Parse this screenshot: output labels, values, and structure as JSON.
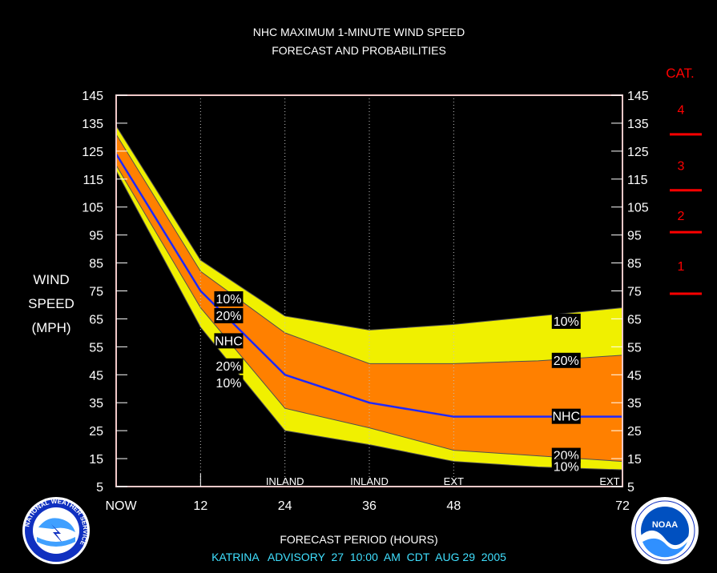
{
  "chart_data": {
    "type": "area",
    "title": "NHC MAXIMUM 1-MINUTE WIND SPEED",
    "subtitle": "FORECAST AND PROBABILITIES",
    "ylabel_lines": [
      "WIND",
      "SPEED",
      "(MPH)"
    ],
    "xlabel": "FORECAST PERIOD (HOURS)",
    "footer": "KATRINA   ADVISORY  27  10:00  AM  CDT  AUG 29  2005",
    "x": [
      0,
      12,
      24,
      36,
      48,
      60,
      72
    ],
    "xlim": [
      0,
      72
    ],
    "ylim": [
      5,
      145
    ],
    "yticks": [
      5,
      15,
      25,
      35,
      45,
      55,
      65,
      75,
      85,
      95,
      105,
      115,
      125,
      135,
      145
    ],
    "xticks": [
      {
        "value": 0,
        "label": "NOW"
      },
      {
        "value": 12,
        "label": "12"
      },
      {
        "value": 24,
        "label": "24"
      },
      {
        "value": 36,
        "label": "36"
      },
      {
        "value": 48,
        "label": "48"
      },
      {
        "value": 72,
        "label": "72"
      }
    ],
    "period_labels": [
      {
        "x": 24,
        "label": "INLAND"
      },
      {
        "x": 36,
        "label": "INLAND"
      },
      {
        "x": 48,
        "label": "EXT"
      },
      {
        "x": 72,
        "label": "EXT"
      }
    ],
    "series": [
      {
        "name": "10%",
        "values": [
          134,
          86,
          66,
          61,
          63,
          66,
          69
        ],
        "color": "#f0f000"
      },
      {
        "name": "20%",
        "values": [
          131,
          82,
          60,
          49,
          49,
          50,
          52
        ],
        "color": "#ff8000"
      },
      {
        "name": "NHC",
        "values": [
          124,
          75,
          45,
          35,
          30,
          30,
          30
        ],
        "color": "#1e28ff"
      },
      {
        "name": "20%",
        "values": [
          120,
          69,
          33,
          26,
          18,
          16,
          14
        ],
        "color": "#ff8000"
      },
      {
        "name": "10%",
        "values": [
          118,
          62,
          25,
          20,
          14,
          12,
          11
        ],
        "color": "#f0f000"
      }
    ],
    "band_labels": [
      {
        "text": "10%",
        "x": 16,
        "y": 72
      },
      {
        "text": "20%",
        "x": 16,
        "y": 66
      },
      {
        "text": "NHC",
        "x": 16,
        "y": 57
      },
      {
        "text": "20%",
        "x": 16,
        "y": 48
      },
      {
        "text": "10%",
        "x": 16,
        "y": 42
      },
      {
        "text": "10%",
        "x": 64,
        "y": 64
      },
      {
        "text": "20%",
        "x": 64,
        "y": 50
      },
      {
        "text": "NHC",
        "x": 64,
        "y": 30
      },
      {
        "text": "20%",
        "x": 64,
        "y": 16
      },
      {
        "text": "10%",
        "x": 64,
        "y": 12
      }
    ],
    "category_scale": {
      "title": "CAT.",
      "color": "#ff0000",
      "categories": [
        {
          "label": "4",
          "y": 140
        },
        {
          "label": "3",
          "y": 120
        },
        {
          "label": "2",
          "y": 102
        },
        {
          "label": "1",
          "y": 84
        }
      ],
      "thresholds": [
        74,
        96,
        111,
        131
      ]
    },
    "colors": {
      "background": "#000000",
      "frame": "#f0c8c8",
      "title": "#ffffff",
      "footer": "#40e0ff",
      "band_outer": "#f0f000",
      "band_inner": "#ff8000",
      "nhc_line": "#1e28ff"
    }
  },
  "logos": {
    "left": {
      "icon": "nws-logo",
      "text": "NATIONAL WEATHER SERVICE"
    },
    "right": {
      "icon": "noaa-logo",
      "text": "NOAA"
    }
  }
}
